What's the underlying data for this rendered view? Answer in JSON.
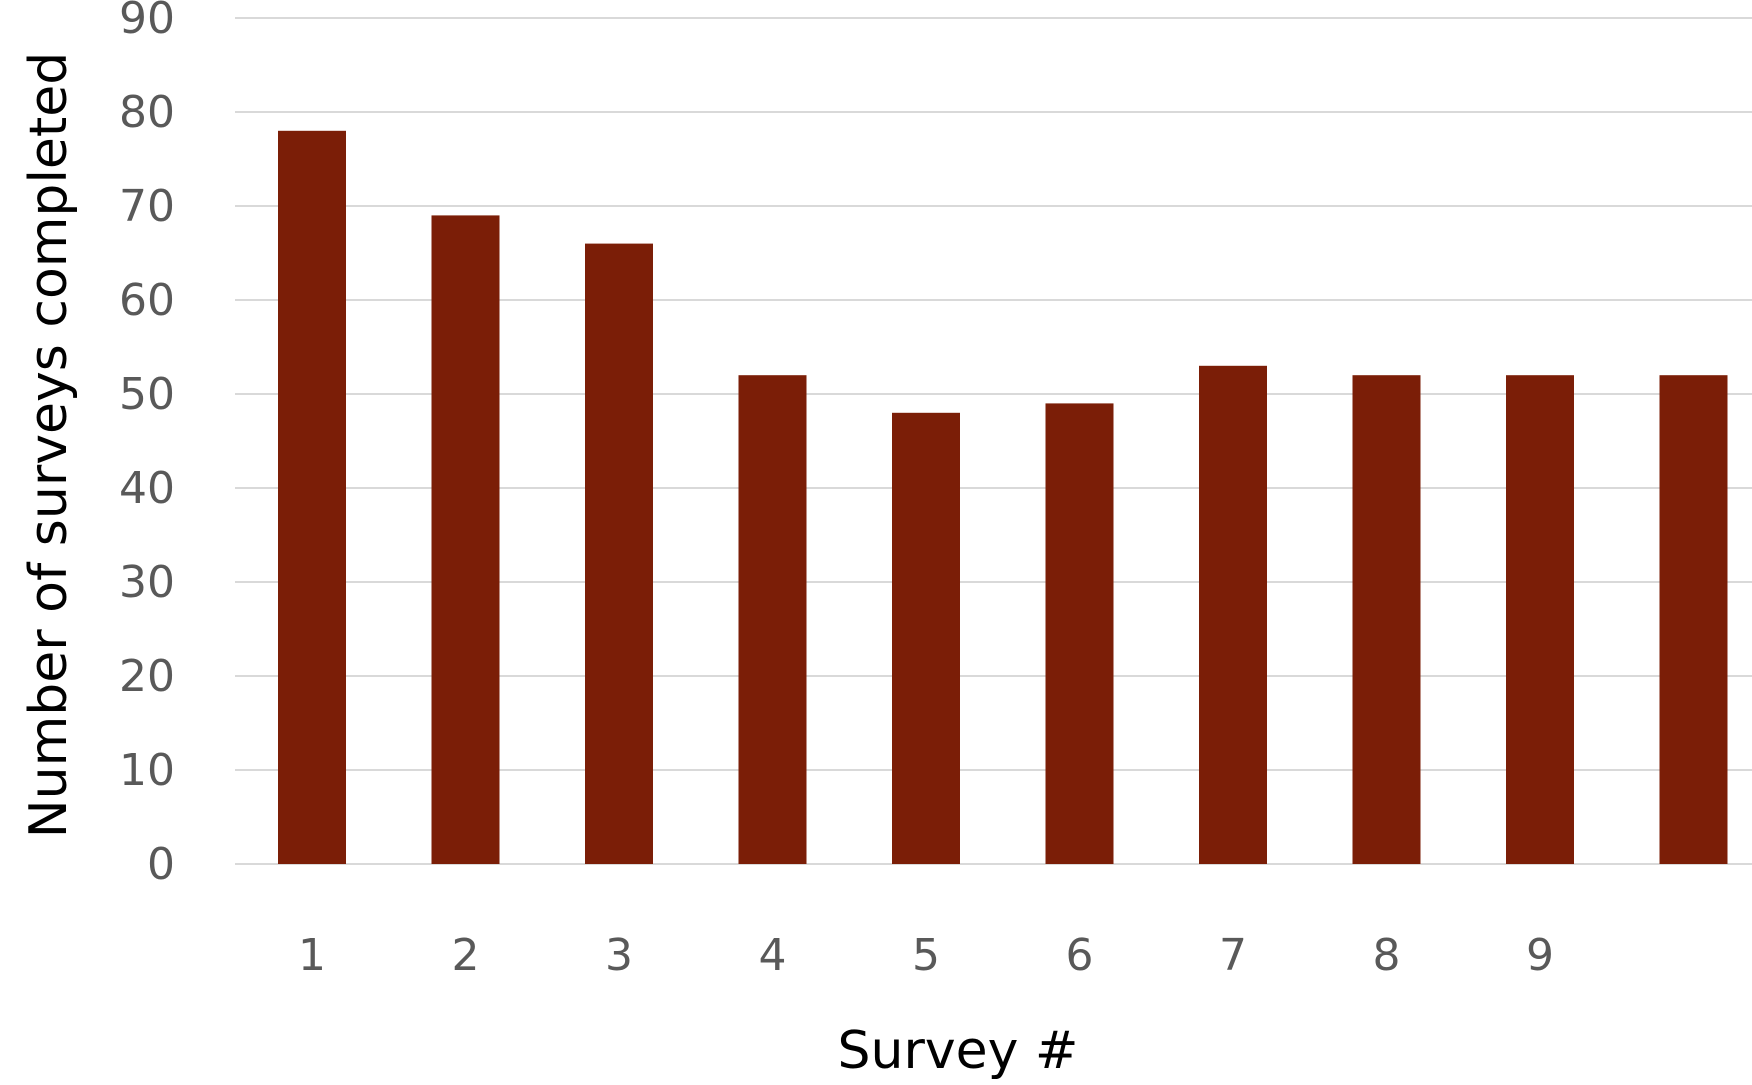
{
  "chart_data": {
    "type": "bar",
    "categories": [
      "1",
      "2",
      "3",
      "4",
      "5",
      "6",
      "7",
      "8",
      "9",
      ""
    ],
    "values": [
      78,
      69,
      66,
      52,
      48,
      49,
      53,
      52,
      52,
      52
    ],
    "xlabel": "Survey #",
    "ylabel": "Number of surveys completed",
    "ylim": [
      0,
      90
    ],
    "yticks": [
      0,
      10,
      20,
      30,
      40,
      50,
      60,
      70,
      80,
      90
    ],
    "grid": true,
    "legend": "none",
    "bar_color": "#7b1e07"
  }
}
